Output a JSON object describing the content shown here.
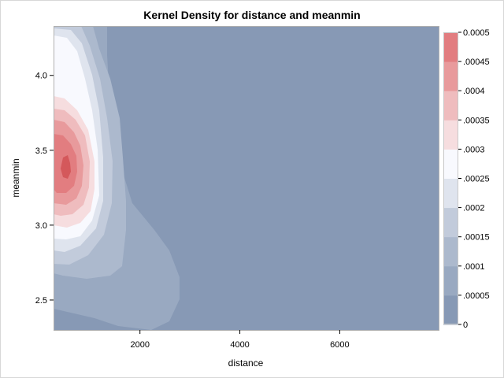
{
  "chart_data": {
    "type": "heatmap",
    "title": "Kernel Density for distance and meanmin",
    "xlabel": "distance",
    "ylabel": "meanmin",
    "xlim": [
      270,
      7980
    ],
    "ylim": [
      2.3,
      4.33
    ],
    "x_ticks": [
      2000,
      4000,
      6000
    ],
    "x_tick_labels": [
      "2000",
      "4000",
      "6000"
    ],
    "y_ticks": [
      2.5,
      3.0,
      3.5,
      4.0
    ],
    "y_tick_labels": [
      "2.5",
      "3.0",
      "3.5",
      "4.0"
    ],
    "legend": {
      "placement": "right",
      "levels": [
        0,
        5e-05,
        0.0001,
        0.00015,
        0.0002,
        0.00025,
        0.0003,
        0.00035,
        0.0004,
        0.00045,
        0.0005
      ],
      "labels": [
        "0",
        ".00005",
        ".0001",
        ".00015",
        ".0002",
        ".00025",
        ".0003",
        ".00035",
        ".0004",
        ".00045",
        "0.0005"
      ],
      "colors": [
        "#8799b5",
        "#99a9c1",
        "#acb9cd",
        "#c2cbdb",
        "#dfe4ee",
        "#f8f9fe",
        "#f6dddf",
        "#efbcbe",
        "#e89a9c",
        "#e27d80",
        "#d4585b"
      ]
    },
    "density_peak": {
      "x": 480,
      "y": 3.4,
      "value": 0.00048
    }
  }
}
